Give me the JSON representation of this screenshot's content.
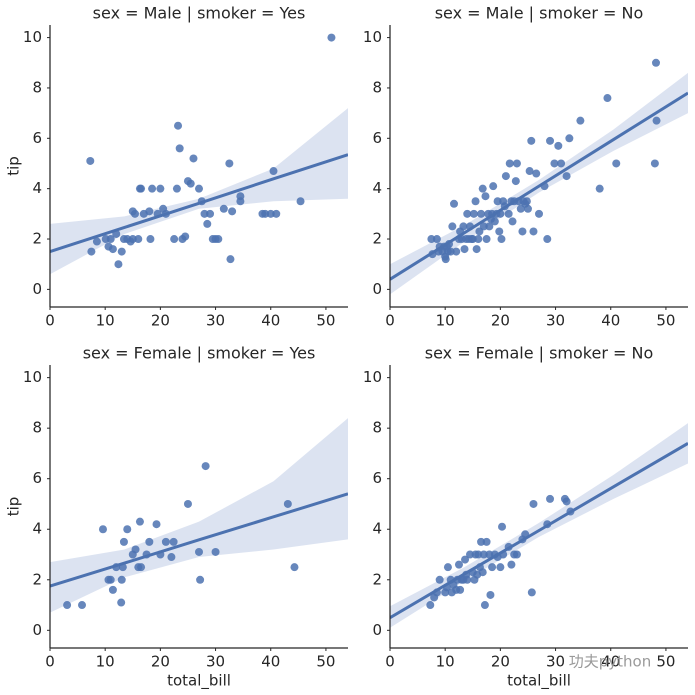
{
  "chart_data": [
    {
      "type": "scatter",
      "title": "sex = Male | smoker = Yes",
      "ylabel": "tip",
      "color": "#4c72b0",
      "band_color": "#c5d0e8",
      "xlim": [
        0,
        54
      ],
      "ylim": [
        -0.7,
        10.5
      ],
      "xticks": [
        0,
        10,
        20,
        30,
        40,
        50
      ],
      "yticks": [
        0,
        2,
        4,
        6,
        8,
        10
      ],
      "x": [
        7.3,
        7.5,
        8.5,
        10.1,
        10.6,
        11,
        11.4,
        12,
        12.4,
        13,
        13.4,
        14,
        14.6,
        15,
        15,
        15.4,
        16,
        16.3,
        16.5,
        17,
        18,
        18.2,
        18.5,
        19.5,
        20,
        20.5,
        21,
        22.5,
        23,
        23.2,
        23.5,
        24,
        24.5,
        25,
        25.5,
        26,
        27,
        27.5,
        28,
        28.5,
        29,
        29.5,
        30,
        30.5,
        31.5,
        32.5,
        32.7,
        33,
        34.5,
        34.5,
        38.5,
        39,
        40,
        40.5,
        41,
        45.4,
        51
      ],
      "y": [
        5.1,
        1.5,
        1.9,
        2,
        1.7,
        2,
        1.6,
        2.2,
        1,
        1.5,
        2,
        2,
        1.9,
        2,
        3.1,
        3,
        2,
        4,
        4,
        3,
        3.1,
        2,
        4,
        3,
        4,
        3.2,
        3,
        2,
        4,
        6.5,
        5.6,
        2,
        2.1,
        4.3,
        4.2,
        5.2,
        4,
        3.5,
        3,
        2.6,
        3,
        2,
        2,
        2,
        3.2,
        5,
        1.2,
        3.1,
        3.7,
        3.5,
        3,
        3,
        3,
        4.7,
        3,
        3.5,
        10
      ],
      "fit": {
        "x": [
          0,
          13.5,
          27,
          40.5,
          54
        ],
        "y": [
          1.5,
          2.46,
          3.42,
          4.39,
          5.35
        ],
        "lower": [
          0.6,
          2.2,
          3.2,
          3.5,
          3.6
        ],
        "upper": [
          2.6,
          2.9,
          3.6,
          4.8,
          7.2
        ]
      }
    },
    {
      "type": "scatter",
      "title": "sex = Male | smoker = No",
      "color": "#4c72b0",
      "band_color": "#c5d0e8",
      "xlim": [
        0,
        54
      ],
      "ylim": [
        -0.7,
        10.5
      ],
      "xticks": [
        0,
        10,
        20,
        30,
        40,
        50
      ],
      "yticks": [
        0,
        2,
        4,
        6,
        8,
        10
      ],
      "x": [
        7.5,
        7.7,
        8.5,
        8.8,
        9,
        9.5,
        9.8,
        10,
        10.1,
        10.3,
        10.5,
        10.7,
        11,
        11.3,
        11.6,
        12,
        12.5,
        12.7,
        13,
        13.3,
        13.5,
        13.8,
        14,
        14.3,
        14.5,
        14.8,
        15,
        15.2,
        15.5,
        15.7,
        16,
        16.2,
        16.5,
        16.8,
        17,
        17.3,
        17.5,
        17.8,
        18,
        18.3,
        18.5,
        18.7,
        19,
        19.3,
        19.5,
        19.8,
        20,
        20.2,
        20.5,
        20.8,
        21,
        21.5,
        21.7,
        22,
        22.2,
        22.5,
        22.8,
        23,
        23.3,
        23.7,
        24,
        24.2,
        24.5,
        24.8,
        25,
        25.3,
        25.6,
        26,
        26.5,
        27,
        28,
        28.5,
        29,
        29.8,
        30.5,
        31,
        32,
        32.5,
        34.5,
        38,
        39.4,
        41,
        48,
        48.2,
        48.3
      ],
      "y": [
        2,
        1.4,
        2,
        1.5,
        1.7,
        1.5,
        1.7,
        1.3,
        1.2,
        1.7,
        1.5,
        1.8,
        1.5,
        2.5,
        3.4,
        1.5,
        2,
        2.3,
        2,
        2.5,
        1.6,
        2,
        3,
        2,
        2.5,
        2,
        2,
        3,
        3.5,
        1.6,
        2,
        2.3,
        3,
        4,
        2.5,
        3.7,
        2,
        3,
        2.5,
        2.8,
        3,
        4.1,
        2.7,
        3,
        3.5,
        2.3,
        3,
        2,
        3.5,
        3.3,
        4.5,
        3,
        5,
        3.5,
        2.7,
        3.5,
        4.3,
        5,
        3.5,
        3.2,
        2.3,
        3.5,
        3.4,
        3.5,
        3.2,
        4.7,
        5.9,
        2.3,
        4.6,
        3,
        4.1,
        2,
        5.9,
        5,
        5.7,
        5,
        4.5,
        6,
        6.7,
        4,
        7.6,
        5,
        5,
        9,
        6.7
      ],
      "fit": {
        "x": [
          0,
          13.5,
          27,
          40.5,
          54
        ],
        "y": [
          0.4,
          2.25,
          4.1,
          5.95,
          7.8
        ],
        "lower": [
          -0.2,
          1.9,
          3.85,
          5.5,
          7.0
        ],
        "upper": [
          1.0,
          2.55,
          4.35,
          6.35,
          8.6
        ]
      }
    },
    {
      "type": "scatter",
      "title": "sex = Female | smoker = Yes",
      "ylabel": "tip",
      "xlabel": "total_bill",
      "color": "#4c72b0",
      "band_color": "#c5d0e8",
      "xlim": [
        0,
        54
      ],
      "ylim": [
        -0.7,
        10.5
      ],
      "xticks": [
        0,
        10,
        20,
        30,
        40,
        50
      ],
      "yticks": [
        0,
        2,
        4,
        6,
        8,
        10
      ],
      "x": [
        3.1,
        5.8,
        9.6,
        10.6,
        11,
        11.4,
        12,
        12.9,
        13,
        13.2,
        13.4,
        14,
        15,
        15.5,
        16,
        16.3,
        16.5,
        17.5,
        18,
        19.3,
        20,
        21,
        22,
        22.4,
        25,
        27,
        27.2,
        28.2,
        30,
        43.1,
        44.3
      ],
      "y": [
        1,
        1,
        4,
        2,
        2,
        1.6,
        2.5,
        1.1,
        2,
        2.5,
        3.5,
        4,
        3,
        3.2,
        2.5,
        4.3,
        2.5,
        3,
        3.5,
        4.2,
        3,
        3.5,
        2.9,
        3.5,
        5,
        3.1,
        2,
        6.5,
        3.1,
        5,
        2.5
      ],
      "fit": {
        "x": [
          0,
          13.5,
          27,
          40.5,
          54
        ],
        "y": [
          1.75,
          2.66,
          3.58,
          4.49,
          5.4
        ],
        "lower": [
          0.7,
          2.1,
          2.9,
          3.2,
          3.6
        ],
        "upper": [
          2.7,
          3.2,
          4.3,
          5.9,
          8.4
        ]
      }
    },
    {
      "type": "scatter",
      "title": "sex = Female | smoker = No",
      "xlabel": "total_bill",
      "color": "#4c72b0",
      "band_color": "#c5d0e8",
      "xlim": [
        0,
        54
      ],
      "ylim": [
        -0.7,
        10.5
      ],
      "xticks": [
        0,
        10,
        20,
        30,
        40,
        50
      ],
      "yticks": [
        0,
        2,
        4,
        6,
        8,
        10
      ],
      "x": [
        7.3,
        8,
        8.5,
        9,
        10,
        10.3,
        10.5,
        11,
        11.2,
        11.5,
        12,
        12.2,
        12.5,
        12.7,
        13,
        13.3,
        13.6,
        13.8,
        14,
        14.5,
        15,
        15.3,
        15.5,
        15.8,
        16,
        16.3,
        16.5,
        16.8,
        17,
        17.2,
        17.5,
        18,
        18.2,
        18.5,
        19,
        19.5,
        20,
        20.3,
        20.5,
        21.5,
        22,
        22.5,
        23,
        24,
        24.5,
        25.7,
        26,
        28.5,
        29,
        31.7,
        32,
        32.7
      ],
      "y": [
        1,
        1.3,
        1.5,
        2,
        1.5,
        1.7,
        2.5,
        2,
        1.5,
        1.8,
        1.6,
        2,
        2.6,
        1.6,
        2,
        2,
        2.8,
        2.2,
        2,
        3,
        2.3,
        2,
        3,
        2.2,
        3,
        2.5,
        3.5,
        2.3,
        3,
        1,
        3.5,
        3,
        1.4,
        2.5,
        3,
        2.9,
        2.5,
        4.1,
        3,
        3.3,
        2.6,
        3,
        3,
        3.6,
        3.8,
        1.5,
        5,
        4.2,
        5.2,
        5.2,
        5.1,
        4.7
      ],
      "fit": {
        "x": [
          0,
          13.5,
          27,
          40.5,
          54
        ],
        "y": [
          0.5,
          2.23,
          3.95,
          5.68,
          7.4
        ],
        "lower": [
          0.1,
          1.95,
          3.7,
          5.2,
          6.6
        ],
        "upper": [
          0.95,
          2.5,
          4.25,
          6.15,
          8.2
        ]
      }
    }
  ],
  "watermark": "功夫python"
}
